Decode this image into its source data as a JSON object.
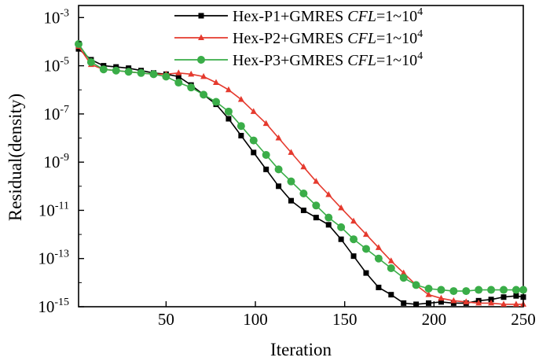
{
  "chart_data": {
    "type": "line",
    "title": "",
    "xlabel": "Iteration",
    "ylabel": "Residual(density)",
    "xlim": [
      1,
      250
    ],
    "ylim_log10": [
      -15,
      -2.5
    ],
    "yscale": "log",
    "x_ticks": [
      {
        "value": 50,
        "label": "50"
      },
      {
        "value": 100,
        "label": "100"
      },
      {
        "value": 150,
        "label": "150"
      },
      {
        "value": 200,
        "label": "200"
      },
      {
        "value": 250,
        "label": "250"
      }
    ],
    "y_ticks": [
      {
        "value": -3,
        "base": "10",
        "exp": "-3"
      },
      {
        "value": -5,
        "base": "10",
        "exp": "-5"
      },
      {
        "value": -7,
        "base": "10",
        "exp": "-7"
      },
      {
        "value": -9,
        "base": "10",
        "exp": "-9"
      },
      {
        "value": -11,
        "base": "10",
        "exp": "-11"
      },
      {
        "value": -13,
        "base": "10",
        "exp": "-13"
      },
      {
        "value": -15,
        "base": "10",
        "exp": "-15"
      }
    ],
    "legend_position": "top-right",
    "series": [
      {
        "name": "Hex-P1+GMRES",
        "legend_prefix": "Hex-P1+GMRES ",
        "legend_italic": "CFL",
        "legend_mid": "=1~10",
        "legend_sup": "4",
        "color": "#000000",
        "marker": "square",
        "x": [
          1,
          8,
          15,
          22,
          29,
          36,
          43,
          50,
          57,
          64,
          71,
          78,
          85,
          92,
          99,
          106,
          113,
          120,
          127,
          134,
          141,
          148,
          155,
          162,
          169,
          176,
          183,
          190,
          197,
          204,
          211,
          218,
          225,
          232,
          239,
          246,
          250
        ],
        "log10_y": [
          -4.3,
          -4.75,
          -5.0,
          -5.05,
          -5.1,
          -5.2,
          -5.3,
          -5.35,
          -5.45,
          -5.8,
          -6.2,
          -6.6,
          -7.2,
          -7.9,
          -8.6,
          -9.3,
          -10.0,
          -10.6,
          -11.0,
          -11.3,
          -11.6,
          -12.2,
          -12.9,
          -13.6,
          -14.2,
          -14.5,
          -14.85,
          -14.9,
          -14.85,
          -14.8,
          -14.85,
          -14.85,
          -14.75,
          -14.7,
          -14.6,
          -14.55,
          -14.6
        ]
      },
      {
        "name": "Hex-P2+GMRES",
        "legend_prefix": "Hex-P2+GMRES ",
        "legend_italic": "CFL",
        "legend_mid": "=1~10",
        "legend_sup": "4",
        "color": "#e53a2e",
        "marker": "triangle",
        "x": [
          1,
          8,
          15,
          22,
          29,
          36,
          43,
          50,
          57,
          64,
          71,
          78,
          85,
          92,
          99,
          106,
          113,
          120,
          127,
          134,
          141,
          148,
          155,
          162,
          169,
          176,
          183,
          190,
          197,
          204,
          211,
          218,
          225,
          232,
          239,
          246,
          250
        ],
        "log10_y": [
          -4.2,
          -4.95,
          -5.15,
          -5.2,
          -5.25,
          -5.3,
          -5.35,
          -5.35,
          -5.3,
          -5.35,
          -5.45,
          -5.7,
          -6.0,
          -6.4,
          -6.9,
          -7.4,
          -8.0,
          -8.6,
          -9.2,
          -9.8,
          -10.35,
          -10.9,
          -11.45,
          -12.0,
          -12.55,
          -13.1,
          -13.6,
          -14.1,
          -14.5,
          -14.65,
          -14.75,
          -14.8,
          -14.85,
          -14.85,
          -14.9,
          -14.9,
          -14.9
        ]
      },
      {
        "name": "Hex-P3+GMRES",
        "legend_prefix": "Hex-P3+GMRES ",
        "legend_italic": "CFL",
        "legend_mid": "=1~10",
        "legend_sup": "4",
        "color": "#3aad48",
        "marker": "circle",
        "x": [
          1,
          8,
          15,
          22,
          29,
          36,
          43,
          50,
          57,
          64,
          71,
          78,
          85,
          92,
          99,
          106,
          113,
          120,
          127,
          134,
          141,
          148,
          155,
          162,
          169,
          176,
          183,
          190,
          197,
          204,
          211,
          218,
          225,
          232,
          239,
          246,
          250
        ],
        "log10_y": [
          -4.1,
          -4.85,
          -5.15,
          -5.2,
          -5.25,
          -5.3,
          -5.35,
          -5.45,
          -5.7,
          -5.9,
          -6.2,
          -6.5,
          -6.9,
          -7.5,
          -8.1,
          -8.7,
          -9.3,
          -9.8,
          -10.3,
          -10.8,
          -11.3,
          -11.7,
          -12.2,
          -12.6,
          -13.0,
          -13.4,
          -13.8,
          -14.1,
          -14.25,
          -14.3,
          -14.35,
          -14.35,
          -14.3,
          -14.3,
          -14.3,
          -14.3,
          -14.3
        ]
      }
    ]
  }
}
